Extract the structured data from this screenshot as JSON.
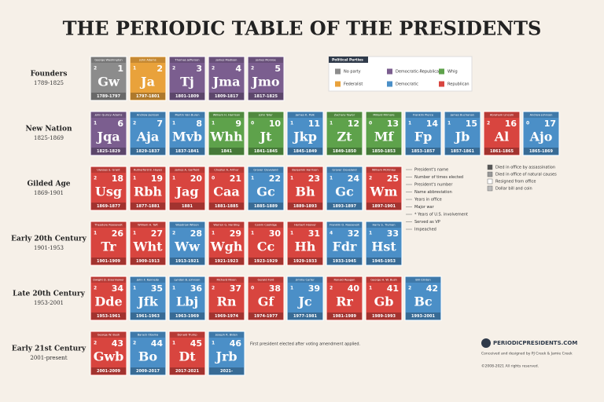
{
  "header": {
    "title": "THE PERIODIC TABLE OF THE PRESIDENTS"
  },
  "parties": {
    "title": "Political Parties",
    "items": [
      {
        "name": "No party",
        "color": "#8c8c8c"
      },
      {
        "name": "Democratic-Republican",
        "color": "#7b5e8f"
      },
      {
        "name": "Whig",
        "color": "#5ea24b"
      },
      {
        "name": "Federalist",
        "color": "#e9a23b"
      },
      {
        "name": "Democratic",
        "color": "#4b8fc7"
      },
      {
        "name": "Republican",
        "color": "#d8453f"
      }
    ]
  },
  "eras": [
    {
      "name": "Founders",
      "years": "1789-1825",
      "presidents": [
        {
          "name": "George Washington",
          "elected": 2,
          "number": 1,
          "abbr": "Gw",
          "years": "1789-1797",
          "party": "No party"
        },
        {
          "name": "John Adams",
          "elected": 1,
          "number": 2,
          "abbr": "Ja",
          "years": "1797-1801",
          "party": "Federalist"
        },
        {
          "name": "Thomas Jefferson",
          "elected": 2,
          "number": 3,
          "abbr": "Tj",
          "years": "1801-1809",
          "party": "Democratic-Republican"
        },
        {
          "name": "James Madison",
          "elected": 2,
          "number": 4,
          "abbr": "Jma",
          "years": "1809-1817",
          "party": "Democratic-Republican"
        },
        {
          "name": "James Monroe",
          "elected": 2,
          "number": 5,
          "abbr": "Jmo",
          "years": "1817-1825",
          "party": "Democratic-Republican"
        }
      ]
    },
    {
      "name": "New Nation",
      "years": "1825-1869",
      "presidents": [
        {
          "name": "John Quincy Adams",
          "elected": 1,
          "number": 6,
          "abbr": "Jqa",
          "years": "1825-1829",
          "party": "Democratic-Republican"
        },
        {
          "name": "Andrew Jackson",
          "elected": 2,
          "number": 7,
          "abbr": "Aja",
          "years": "1829-1837",
          "party": "Democratic"
        },
        {
          "name": "Martin Van Buren",
          "elected": 1,
          "number": 8,
          "abbr": "Mvb",
          "years": "1837-1841",
          "party": "Democratic"
        },
        {
          "name": "William H. Harrison",
          "elected": 1,
          "number": 9,
          "abbr": "Whh",
          "years": "1841",
          "party": "Whig"
        },
        {
          "name": "John Tyler",
          "elected": 0,
          "number": 10,
          "abbr": "Jt",
          "years": "1841-1845",
          "party": "Whig"
        },
        {
          "name": "James K. Polk",
          "elected": 1,
          "number": 11,
          "abbr": "Jkp",
          "years": "1845-1849",
          "party": "Democratic"
        },
        {
          "name": "Zachary Taylor",
          "elected": 1,
          "number": 12,
          "abbr": "Zt",
          "years": "1849-1850",
          "party": "Whig"
        },
        {
          "name": "Millard Fillmore",
          "elected": 0,
          "number": 13,
          "abbr": "Mf",
          "years": "1850-1853",
          "party": "Whig"
        },
        {
          "name": "Franklin Pierce",
          "elected": 1,
          "number": 14,
          "abbr": "Fp",
          "years": "1853-1857",
          "party": "Democratic"
        },
        {
          "name": "James Buchanan",
          "elected": 1,
          "number": 15,
          "abbr": "Jb",
          "years": "1857-1861",
          "party": "Democratic"
        },
        {
          "name": "Abraham Lincoln",
          "elected": 2,
          "number": 16,
          "abbr": "Al",
          "years": "1861-1865",
          "party": "Republican"
        },
        {
          "name": "Andrew Johnson",
          "elected": 0,
          "number": 17,
          "abbr": "Ajo",
          "years": "1865-1869",
          "party": "Democratic"
        }
      ]
    },
    {
      "name": "Gilded Age",
      "years": "1869-1901",
      "presidents": [
        {
          "name": "Ulysses S. Grant",
          "elected": 2,
          "number": 18,
          "abbr": "Usg",
          "years": "1869-1877",
          "party": "Republican"
        },
        {
          "name": "Rutherford B. Hayes",
          "elected": 1,
          "number": 19,
          "abbr": "Rbh",
          "years": "1877-1881",
          "party": "Republican"
        },
        {
          "name": "James A. Garfield",
          "elected": 1,
          "number": 20,
          "abbr": "Jag",
          "years": "1881",
          "party": "Republican"
        },
        {
          "name": "Chester A. Arthur",
          "elected": 0,
          "number": 21,
          "abbr": "Caa",
          "years": "1881-1885",
          "party": "Republican"
        },
        {
          "name": "Grover Cleveland",
          "elected": 1,
          "number": 22,
          "abbr": "Gc",
          "years": "1885-1889",
          "party": "Democratic"
        },
        {
          "name": "Benjamin Harrison",
          "elected": 1,
          "number": 23,
          "abbr": "Bh",
          "years": "1889-1893",
          "party": "Republican"
        },
        {
          "name": "Grover Cleveland",
          "elected": 1,
          "number": 24,
          "abbr": "Gc",
          "years": "1893-1897",
          "party": "Democratic"
        },
        {
          "name": "William McKinley",
          "elected": 2,
          "number": 25,
          "abbr": "Wm",
          "years": "1897-1901",
          "party": "Republican"
        }
      ]
    },
    {
      "name": "Early 20th Century",
      "years": "1901-1953",
      "presidents": [
        {
          "name": "Theodore Roosevelt",
          "elected": 1,
          "number": 26,
          "abbr": "Tr",
          "years": "1901-1909",
          "party": "Republican"
        },
        {
          "name": "William H. Taft",
          "elected": 1,
          "number": 27,
          "abbr": "Wht",
          "years": "1909-1913",
          "party": "Republican"
        },
        {
          "name": "Woodrow Wilson",
          "elected": 2,
          "number": 28,
          "abbr": "Ww",
          "years": "1913-1921",
          "party": "Democratic"
        },
        {
          "name": "Warren G. Harding",
          "elected": 1,
          "number": 29,
          "abbr": "Wgh",
          "years": "1921-1923",
          "party": "Republican"
        },
        {
          "name": "Calvin Coolidge",
          "elected": 1,
          "number": 30,
          "abbr": "Cc",
          "years": "1923-1929",
          "party": "Republican"
        },
        {
          "name": "Herbert Hoover",
          "elected": 1,
          "number": 31,
          "abbr": "Hh",
          "years": "1929-1933",
          "party": "Republican"
        },
        {
          "name": "Franklin D. Roosevelt",
          "elected": 4,
          "number": 32,
          "abbr": "Fdr",
          "years": "1933-1945",
          "party": "Democratic"
        },
        {
          "name": "Harry S. Truman",
          "elected": 1,
          "number": 33,
          "abbr": "Hst",
          "years": "1945-1953",
          "party": "Democratic"
        }
      ]
    },
    {
      "name": "Late 20th Century",
      "years": "1953-2001",
      "presidents": [
        {
          "name": "Dwight D. Eisenhower",
          "elected": 2,
          "number": 34,
          "abbr": "Dde",
          "years": "1953-1961",
          "party": "Republican"
        },
        {
          "name": "John F. Kennedy",
          "elected": 1,
          "number": 35,
          "abbr": "Jfk",
          "years": "1961-1963",
          "party": "Democratic"
        },
        {
          "name": "Lyndon B. Johnson",
          "elected": 1,
          "number": 36,
          "abbr": "Lbj",
          "years": "1963-1969",
          "party": "Democratic"
        },
        {
          "name": "Richard Nixon",
          "elected": 2,
          "number": 37,
          "abbr": "Rn",
          "years": "1969-1974",
          "party": "Republican"
        },
        {
          "name": "Gerald Ford",
          "elected": 0,
          "number": 38,
          "abbr": "Gf",
          "years": "1974-1977",
          "party": "Republican"
        },
        {
          "name": "Jimmy Carter",
          "elected": 1,
          "number": 39,
          "abbr": "Jc",
          "years": "1977-1981",
          "party": "Democratic"
        },
        {
          "name": "Ronald Reagan",
          "elected": 2,
          "number": 40,
          "abbr": "Rr",
          "years": "1981-1989",
          "party": "Republican"
        },
        {
          "name": "George H. W. Bush",
          "elected": 1,
          "number": 41,
          "abbr": "Gb",
          "years": "1989-1993",
          "party": "Republican"
        },
        {
          "name": "Bill Clinton",
          "elected": 2,
          "number": 42,
          "abbr": "Bc",
          "years": "1993-2001",
          "party": "Democratic"
        }
      ]
    },
    {
      "name": "Early 21st Century",
      "years": "2001-present",
      "presidents": [
        {
          "name": "George W. Bush",
          "elected": 2,
          "number": 43,
          "abbr": "Gwb",
          "years": "2001-2009",
          "party": "Republican"
        },
        {
          "name": "Barack Obama",
          "elected": 2,
          "number": 44,
          "abbr": "Bo",
          "years": "2009-2017",
          "party": "Democratic"
        },
        {
          "name": "Donald Trump",
          "elected": 1,
          "number": 45,
          "abbr": "Dt",
          "years": "2017-2021",
          "party": "Republican"
        },
        {
          "name": "Joseph R. Biden",
          "elected": 1,
          "number": 46,
          "abbr": "Jrb",
          "years": "2021-",
          "party": "Democratic"
        }
      ]
    }
  ],
  "key": [
    "President's name",
    "Number of times elected",
    "President's number",
    "Name abbreviation",
    "Years in office",
    "Major war",
    "* Years of U.S. involvement",
    "Served as VP",
    "Impeached"
  ],
  "deaths": [
    "Died in office by assassination",
    "Died in office of natural causes",
    "Resigned from office",
    "Dollar bill and coin"
  ],
  "note": "First president elected after voting amendment applied.",
  "footer": {
    "site": "PERIODICPRESIDENTS.COM",
    "credit": "Conceived and designed by PJ Creek & Jamie Creek",
    "copyright": "©2008-2021 All rights reserved."
  }
}
